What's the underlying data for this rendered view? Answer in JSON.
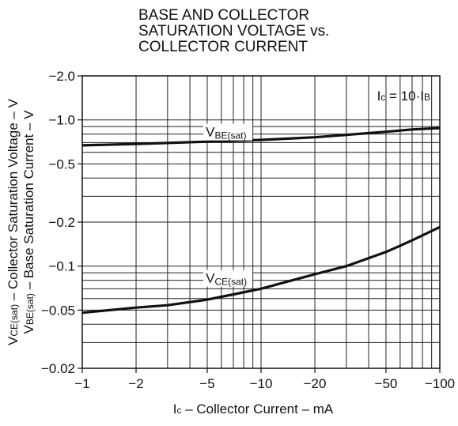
{
  "chart_data": {
    "type": "line",
    "title_lines": [
      "BASE AND COLLECTOR",
      "SATURATION VOLTAGE vs.",
      "COLLECTOR CURRENT"
    ],
    "xlabel": "Ic – Collector Current – mA",
    "ylabel_lines": [
      "VCE(sat) – Collector Saturation Voltage – V",
      "VBE(sat) – Base Saturation Current – V"
    ],
    "annotation": "Ic = 10·IB",
    "x_scale": "log",
    "y_scale": "log",
    "xlim": [
      -1,
      -100
    ],
    "ylim": [
      -0.02,
      -2.0
    ],
    "x_tick_labels": [
      "-1",
      "-2",
      "-5",
      "-10",
      "-20",
      "-50",
      "-100"
    ],
    "y_tick_labels": [
      "-2.0",
      "-1.0",
      "-0.5",
      "-0.2",
      "-0.1",
      "-0.05",
      "-0.02"
    ],
    "grid": true,
    "series": [
      {
        "name": "VBE(sat)",
        "x": [
          -1,
          -2,
          -3,
          -5,
          -7,
          -10,
          -20,
          -30,
          -50,
          -70,
          -100
        ],
        "y": [
          -0.67,
          -0.685,
          -0.695,
          -0.71,
          -0.72,
          -0.73,
          -0.76,
          -0.79,
          -0.83,
          -0.86,
          -0.88
        ],
        "color": "#111111"
      },
      {
        "name": "VCE(sat)",
        "x": [
          -1,
          -2,
          -3,
          -5,
          -7,
          -10,
          -15,
          -20,
          -30,
          -50,
          -70,
          -100
        ],
        "y": [
          -0.048,
          -0.052,
          -0.054,
          -0.059,
          -0.064,
          -0.07,
          -0.08,
          -0.088,
          -0.1,
          -0.125,
          -0.15,
          -0.185
        ],
        "color": "#111111"
      }
    ]
  }
}
